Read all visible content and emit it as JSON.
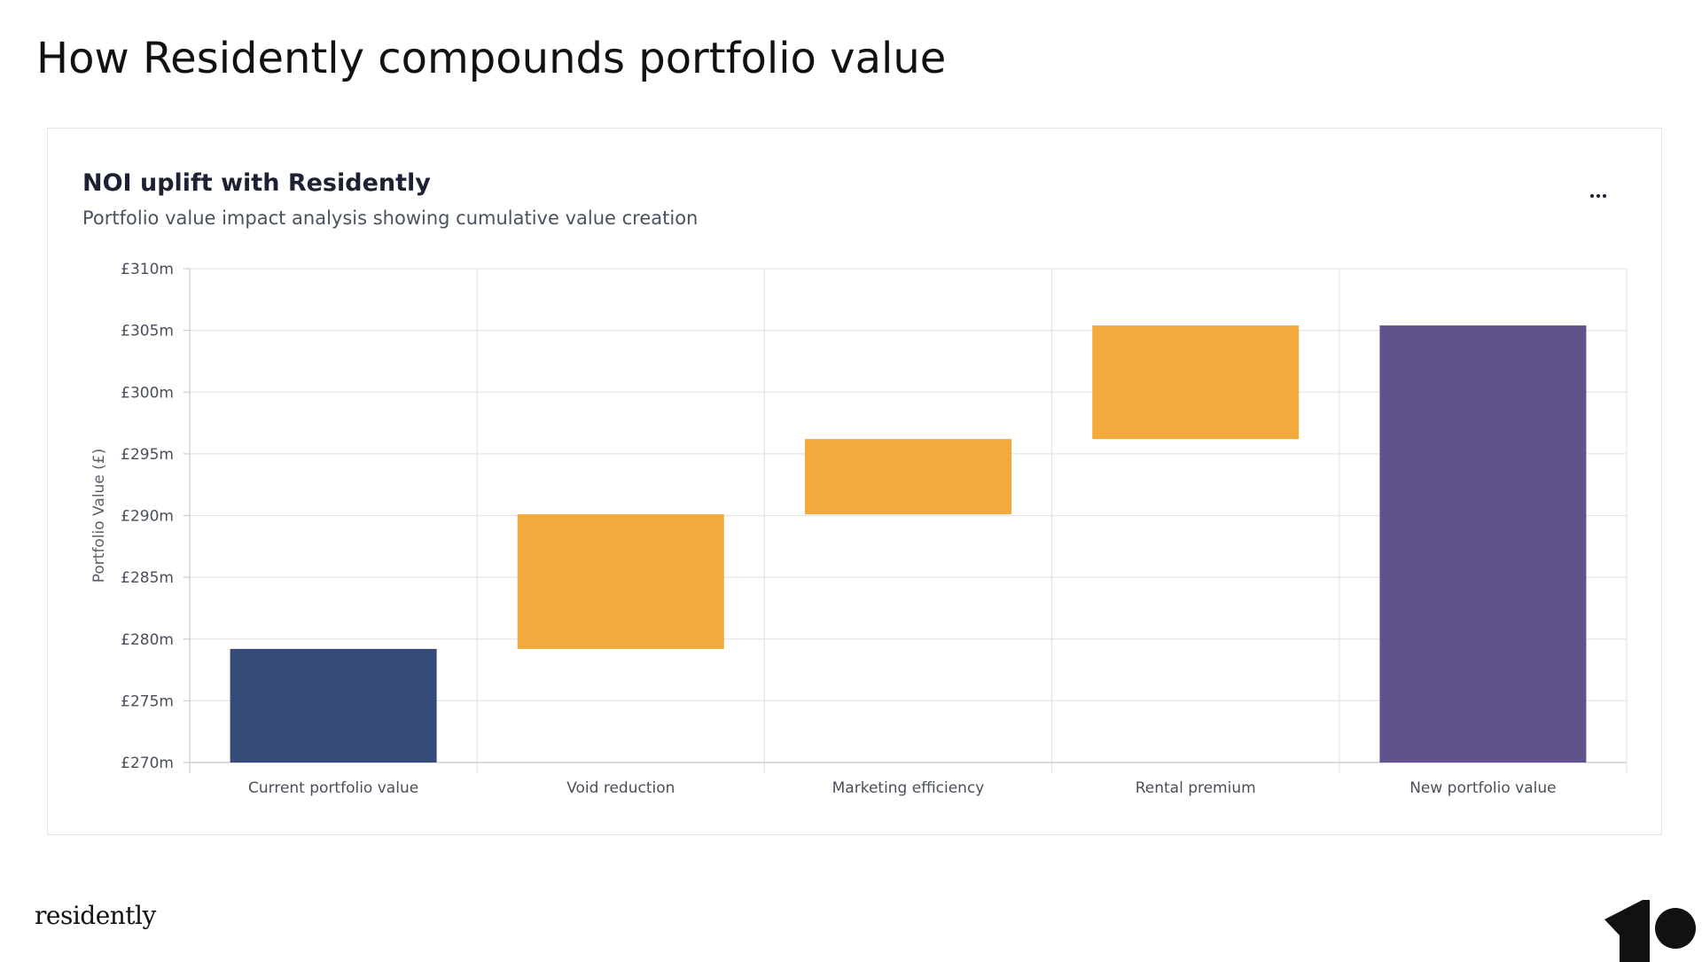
{
  "page": {
    "title": "How Residently compounds portfolio value",
    "brand": "residently"
  },
  "card": {
    "more_icon": "more-horizontal-icon"
  },
  "colors": {
    "current": "#364b78",
    "uplift": "#f3aa3c",
    "new": "#62528c",
    "grid": "#e4e5e8",
    "axis_text": "#4a4f5c"
  },
  "chart_data": {
    "type": "bar",
    "subtype": "waterfall",
    "title": "NOI uplift with Residently",
    "subtitle": "Portfolio value impact analysis showing cumulative value creation",
    "xlabel": "",
    "ylabel": "Portfolio Value (£)",
    "ylim": [
      270,
      310
    ],
    "yticks": [
      270,
      275,
      280,
      285,
      290,
      295,
      300,
      305,
      310
    ],
    "ytick_labels": [
      "£270m",
      "£275m",
      "£280m",
      "£285m",
      "£290m",
      "£295m",
      "£300m",
      "£305m",
      "£310m"
    ],
    "grid": true,
    "legend": "none",
    "categories": [
      "Current portfolio value",
      "Void reduction",
      "Marketing efficiency",
      "Rental premium",
      "New portfolio value"
    ],
    "bars": [
      {
        "kind": "total",
        "start": 270,
        "end": 279.2
      },
      {
        "kind": "increase",
        "start": 279.2,
        "end": 290.1
      },
      {
        "kind": "increase",
        "start": 290.1,
        "end": 296.2
      },
      {
        "kind": "increase",
        "start": 296.2,
        "end": 305.4
      },
      {
        "kind": "total",
        "start": 270,
        "end": 305.4
      }
    ]
  }
}
